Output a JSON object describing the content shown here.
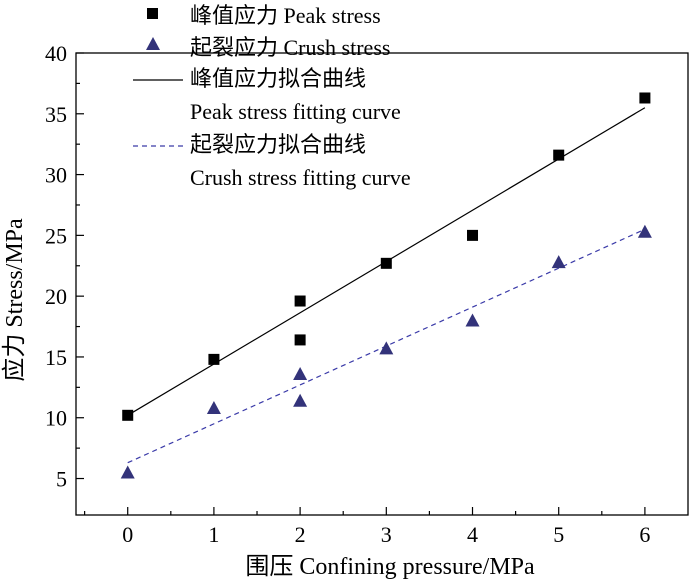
{
  "chart_data": {
    "type": "scatter",
    "title": "",
    "xlabel": "围压 Confining pressure/MPa",
    "ylabel": "应力 Stress/MPa",
    "xlim": [
      -0.6,
      6.5
    ],
    "ylim": [
      2,
      40
    ],
    "xticks": [
      0,
      1,
      2,
      3,
      4,
      5,
      6
    ],
    "yticks": [
      5,
      10,
      15,
      20,
      25,
      30,
      35,
      40
    ],
    "grid": false,
    "legend_position": "top-center",
    "series": [
      {
        "name": "峰值应力 Peak stress",
        "marker": "square",
        "color": "#000000",
        "points": [
          {
            "x": 0,
            "y": 10.2
          },
          {
            "x": 1,
            "y": 14.8
          },
          {
            "x": 2,
            "y": 19.6
          },
          {
            "x": 2,
            "y": 16.4
          },
          {
            "x": 3,
            "y": 22.7
          },
          {
            "x": 4,
            "y": 25.0
          },
          {
            "x": 5,
            "y": 31.6
          },
          {
            "x": 6,
            "y": 36.3
          }
        ]
      },
      {
        "name": "起裂应力 Crush stress",
        "marker": "triangle",
        "color": "#33337a",
        "points": [
          {
            "x": 0,
            "y": 5.5
          },
          {
            "x": 1,
            "y": 10.8
          },
          {
            "x": 2,
            "y": 13.6
          },
          {
            "x": 2,
            "y": 11.4
          },
          {
            "x": 3,
            "y": 15.7
          },
          {
            "x": 4,
            "y": 18.0
          },
          {
            "x": 5,
            "y": 22.8
          },
          {
            "x": 6,
            "y": 25.3
          }
        ]
      }
    ],
    "fits": [
      {
        "name": "峰值应力拟合曲线",
        "name_en": "Peak stress fitting curve",
        "style": "solid",
        "color": "#000000",
        "x": [
          0,
          6
        ],
        "y": [
          10.2,
          35.5
        ]
      },
      {
        "name": "起裂应力拟合曲线",
        "name_en": "Crush stress fitting curve",
        "style": "dashed",
        "color": "#3a3aa8",
        "x": [
          0,
          6
        ],
        "y": [
          6.3,
          25.5
        ]
      }
    ]
  }
}
